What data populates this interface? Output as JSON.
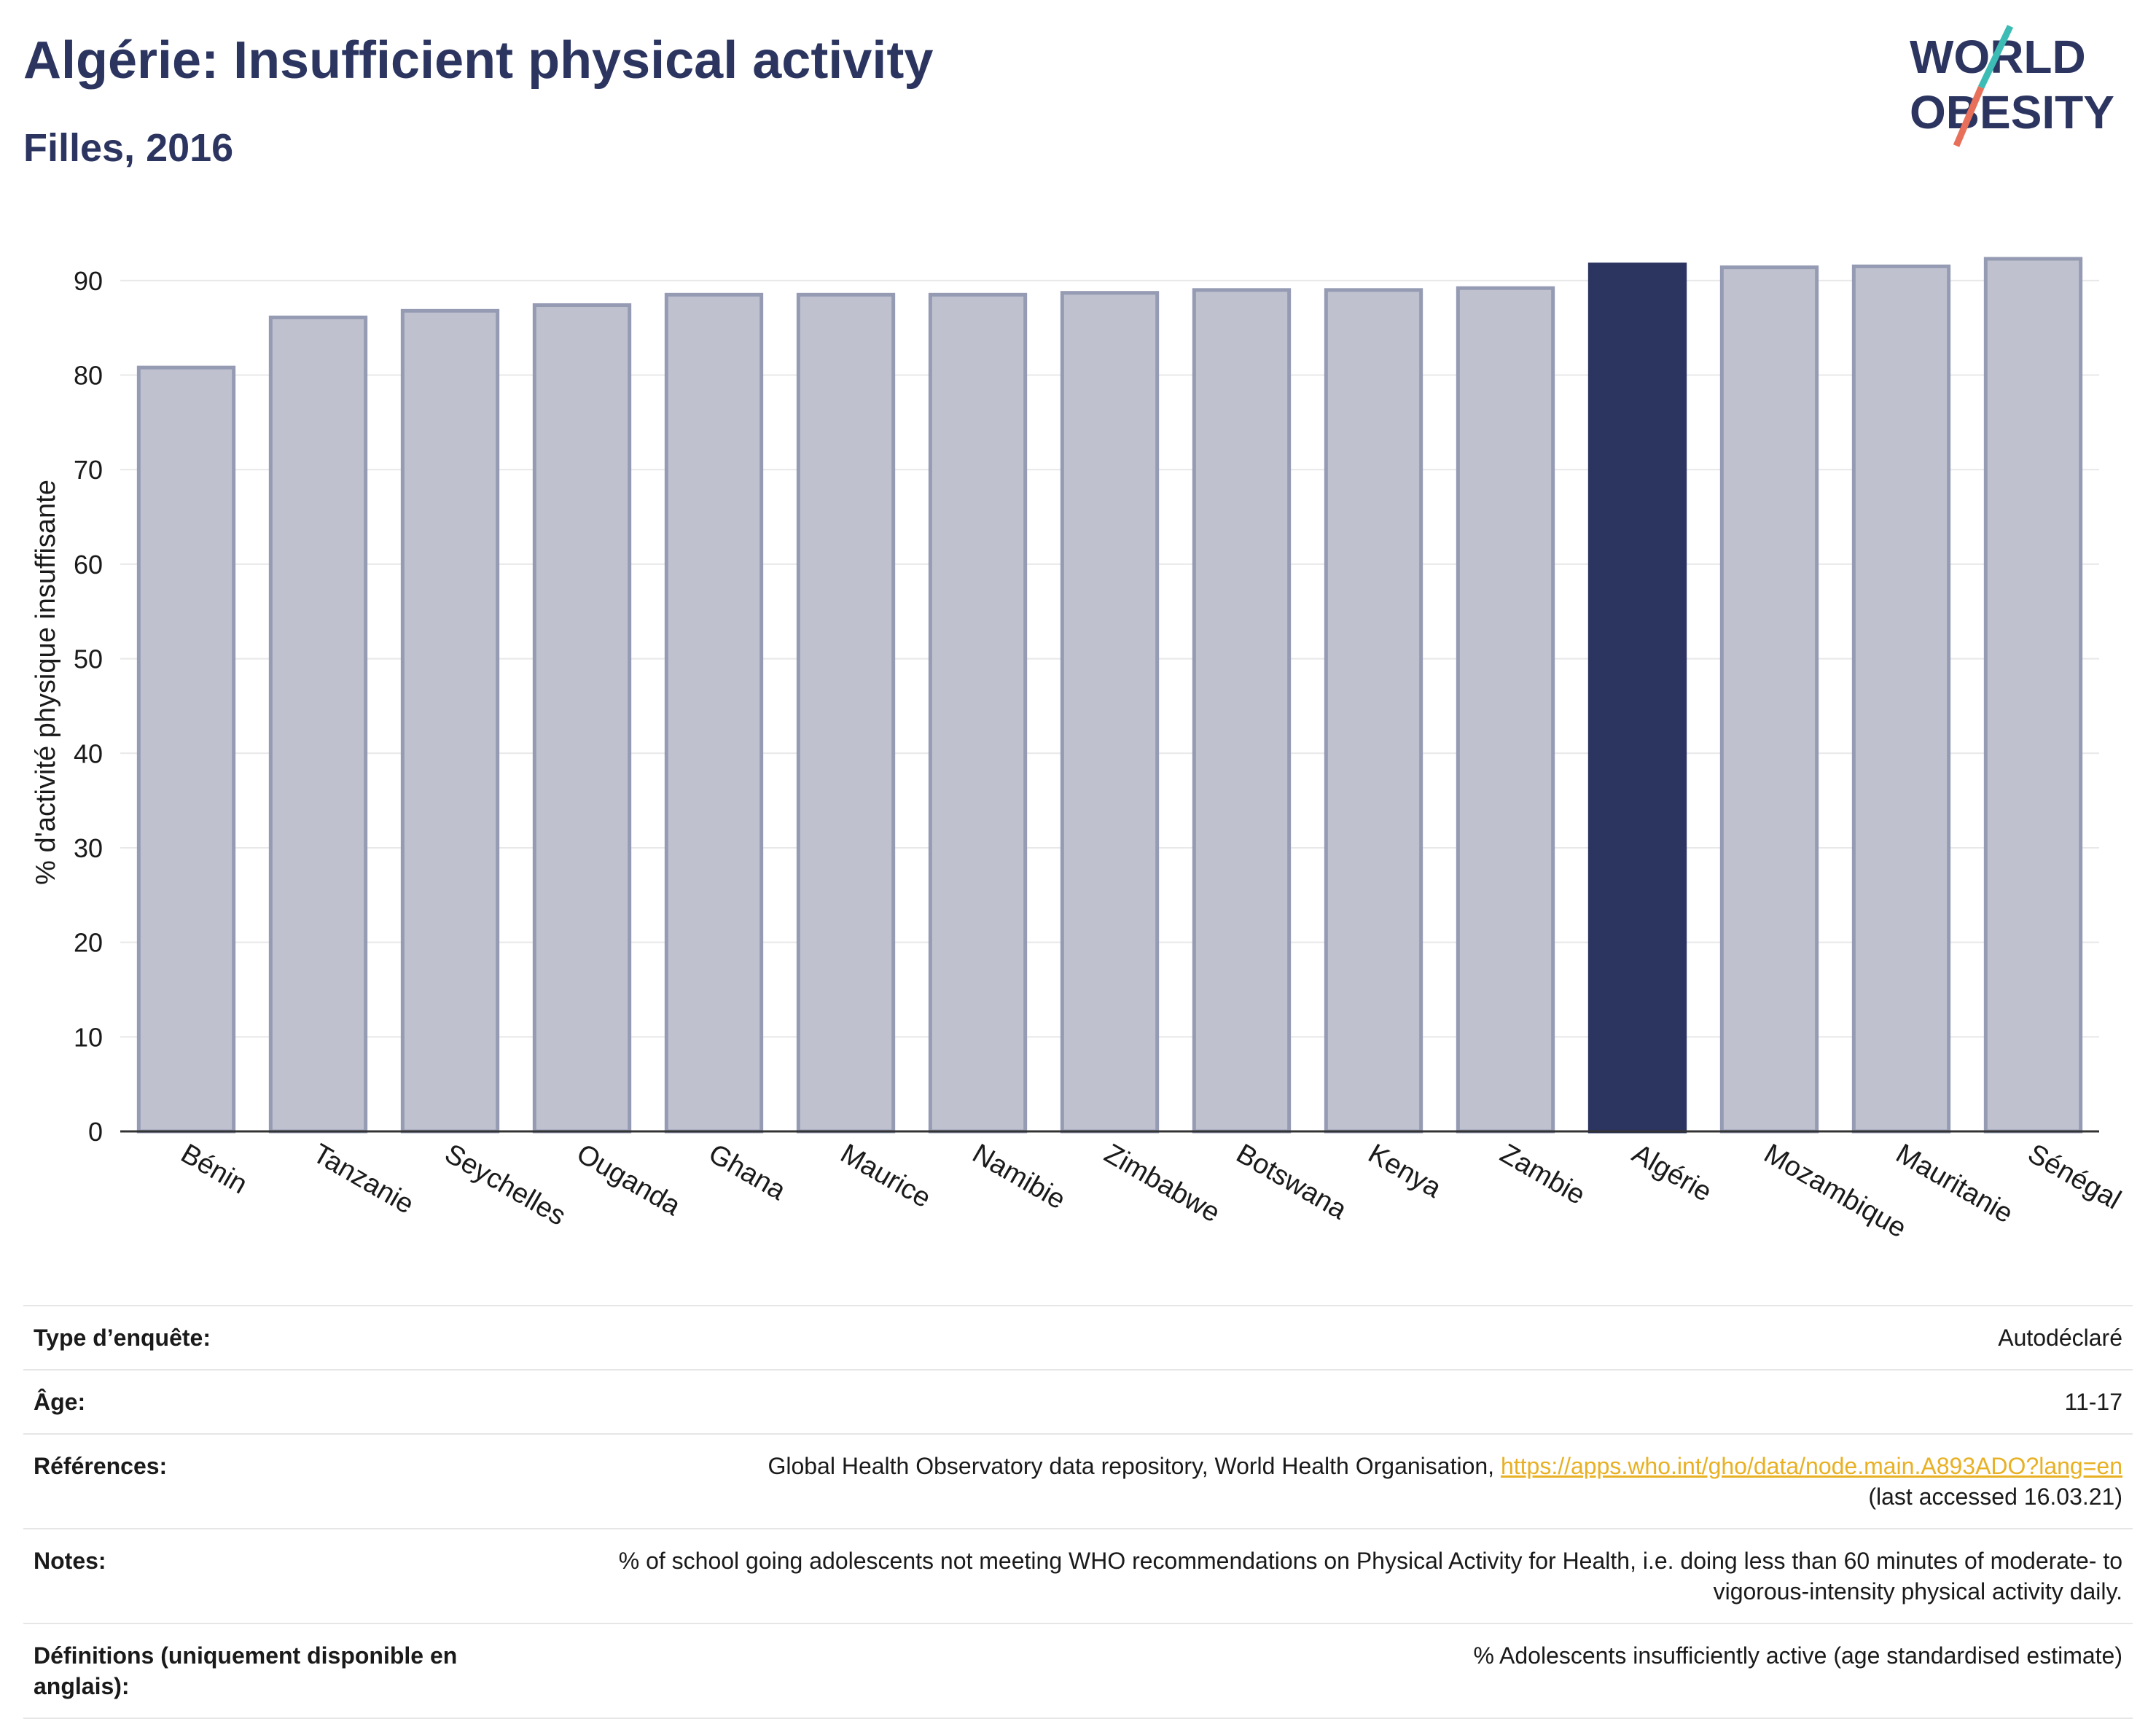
{
  "header": {
    "title": "Algérie: Insufficient physical activity",
    "subtitle": "Filles, 2016"
  },
  "logo": {
    "line1": "WORLD",
    "line2": "OBESITY",
    "colors": {
      "text": "#2b3560",
      "slash_teal": "#3cbcb4",
      "slash_red": "#e8705a"
    }
  },
  "chart_data": {
    "type": "bar",
    "categories": [
      "Bénin",
      "Tanzanie",
      "Seychelles",
      "Ouganda",
      "Ghana",
      "Maurice",
      "Namibie",
      "Zimbabwe",
      "Botswana",
      "Kenya",
      "Zambie",
      "Algérie",
      "Mozambique",
      "Mauritanie",
      "Sénégal"
    ],
    "values": [
      80.8,
      86.1,
      86.8,
      87.4,
      88.5,
      88.5,
      88.5,
      88.7,
      89.0,
      89.0,
      89.2,
      91.7,
      91.4,
      91.5,
      92.3
    ],
    "highlight": "Algérie",
    "ylabel": "% d'activité physique insuffisante",
    "ylim": [
      0,
      95
    ],
    "yticks": [
      0,
      10,
      20,
      30,
      40,
      50,
      60,
      70,
      80,
      90
    ],
    "grid": true,
    "colors": {
      "bar": "#bfc2ce",
      "bar_edge": "#969bb4",
      "highlight": "#2b3560",
      "grid": "#e8e8e8",
      "axis": "#333333"
    }
  },
  "meta": [
    {
      "key": "Type d’enquête:",
      "value": "Autodéclaré"
    },
    {
      "key": "Âge:",
      "value": "11-17"
    },
    {
      "key": "Références:",
      "value": "Global Health Observatory data repository, World Health Organisation, ",
      "link": "https://apps.who.int/gho/data/node.main.A893ADO?lang=en",
      "after": "(last accessed 16.03.21)"
    },
    {
      "key": "Notes:",
      "value": "% of school going adolescents not meeting WHO recommendations on Physical Activity for Health, i.e. doing less than 60 minutes of moderate- to vigorous-intensity physical activity daily."
    },
    {
      "key": "Définitions (uniquement disponible en anglais):",
      "value": "% Adolescents insufficiently active (age standardised estimate)"
    }
  ]
}
